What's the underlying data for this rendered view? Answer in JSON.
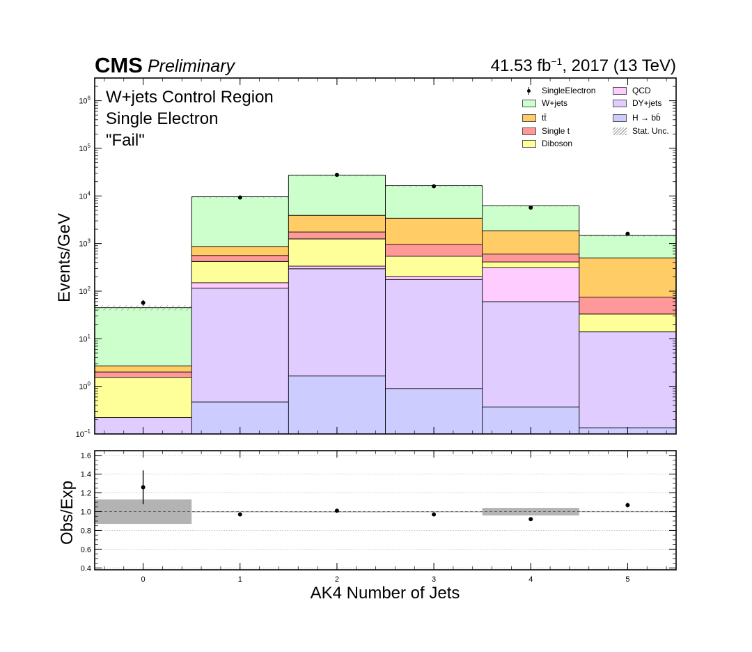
{
  "header": {
    "cms_label": "CMS",
    "preliminary_label": "Preliminary",
    "lumi_prefix": "41.53 fb",
    "lumi_exp": "−1",
    "lumi_suffix": ", 2017 (13 TeV)"
  },
  "annotations": [
    "W+jets Control Region",
    "Single Electron",
    "\"Fail\""
  ],
  "legend": [
    {
      "label": "SingleElectron",
      "kind": "data",
      "color": "#000000"
    },
    {
      "label": "QCD",
      "kind": "fill",
      "color": "#ffccff"
    },
    {
      "label": "W+jets",
      "kind": "fill",
      "color": "#ccffcc"
    },
    {
      "label": "DY+jets",
      "kind": "fill",
      "color": "#e1ccff"
    },
    {
      "label": "tt̄",
      "kind": "fill",
      "color": "#ffcc66"
    },
    {
      "label": "H → bb̄",
      "kind": "fill",
      "color": "#ccccff"
    },
    {
      "label": "Single t",
      "kind": "fill",
      "color": "#ff9999"
    },
    {
      "label": "Stat. Unc.",
      "kind": "hatch",
      "color": "#888888"
    },
    {
      "label": "Diboson",
      "kind": "fill",
      "color": "#ffff99"
    }
  ],
  "chart_data": [
    {
      "type": "bar",
      "subtype": "stacked-histogram",
      "title": "",
      "xlabel": "AK4 Number of Jets",
      "ylabel": "Events/GeV",
      "yscale": "log",
      "ylim": [
        0.1,
        3000000
      ],
      "xlim": [
        -0.5,
        5.5
      ],
      "categories": [
        "0",
        "1",
        "2",
        "3",
        "4",
        "5"
      ],
      "y_ticks": [
        {
          "v": 0.1,
          "m": "10",
          "e": "−1"
        },
        {
          "v": 1,
          "m": "10",
          "e": "0"
        },
        {
          "v": 10,
          "m": "10",
          "e": "1"
        },
        {
          "v": 100,
          "m": "10",
          "e": "2"
        },
        {
          "v": 1000,
          "m": "10",
          "e": "3"
        },
        {
          "v": 10000,
          "m": "10",
          "e": "4"
        },
        {
          "v": 100000,
          "m": "10",
          "e": "5"
        },
        {
          "v": 1000000,
          "m": "10",
          "e": "6"
        }
      ],
      "stack_totals": [
        {
          "name": "H → bb̄",
          "color": "#ccccff",
          "values": [
            0.1,
            0.47,
            1.65,
            0.9,
            0.37,
            0.135
          ]
        },
        {
          "name": "DY+jets",
          "color": "#e1ccff",
          "values": [
            0.22,
            115,
            295,
            175,
            60,
            14
          ]
        },
        {
          "name": "QCD",
          "color": "#ffccff",
          "values": [
            0.22,
            150,
            335,
            205,
            310,
            14
          ]
        },
        {
          "name": "Diboson",
          "color": "#ffff99",
          "values": [
            1.55,
            420,
            1250,
            540,
            410,
            33
          ]
        },
        {
          "name": "Single t",
          "color": "#ff9999",
          "values": [
            2.0,
            560,
            1750,
            960,
            600,
            75
          ]
        },
        {
          "name": "tt̄",
          "color": "#ffcc66",
          "values": [
            2.7,
            870,
            3900,
            3400,
            1850,
            500
          ]
        },
        {
          "name": "W+jets",
          "color": "#ccffcc",
          "values": [
            45,
            9600,
            27500,
            16500,
            6200,
            1480
          ]
        }
      ],
      "stat_unc": [
        0.13,
        0.004,
        0.003,
        0.004,
        0.04,
        0.006
      ],
      "data": {
        "name": "SingleElectron",
        "values": [
          57,
          9300,
          27700,
          16000,
          5700,
          1600
        ],
        "err_up": [
          8,
          100,
          170,
          130,
          75,
          40
        ],
        "err_down": [
          7,
          100,
          170,
          130,
          75,
          40
        ]
      }
    },
    {
      "type": "scatter",
      "xlabel": "AK4 Number of Jets",
      "ylabel": "Obs/Exp",
      "ylim": [
        0.38,
        1.65
      ],
      "y_ticks": [
        "0.4",
        "0.6",
        "0.8",
        "1.0",
        "1.2",
        "1.4",
        "1.6"
      ],
      "x_ticks": [
        "0",
        "1",
        "2",
        "3",
        "4",
        "5"
      ],
      "x": [
        0,
        1,
        2,
        3,
        4,
        5
      ],
      "ratio": [
        1.26,
        0.97,
        1.01,
        0.97,
        0.92,
        1.07
      ],
      "ratio_err": [
        0.18,
        0.01,
        0.01,
        0.01,
        0.012,
        0.025
      ],
      "unc_band": [
        0.13,
        0.004,
        0.003,
        0.004,
        0.04,
        0.006
      ],
      "reference_line": 1.0
    }
  ]
}
